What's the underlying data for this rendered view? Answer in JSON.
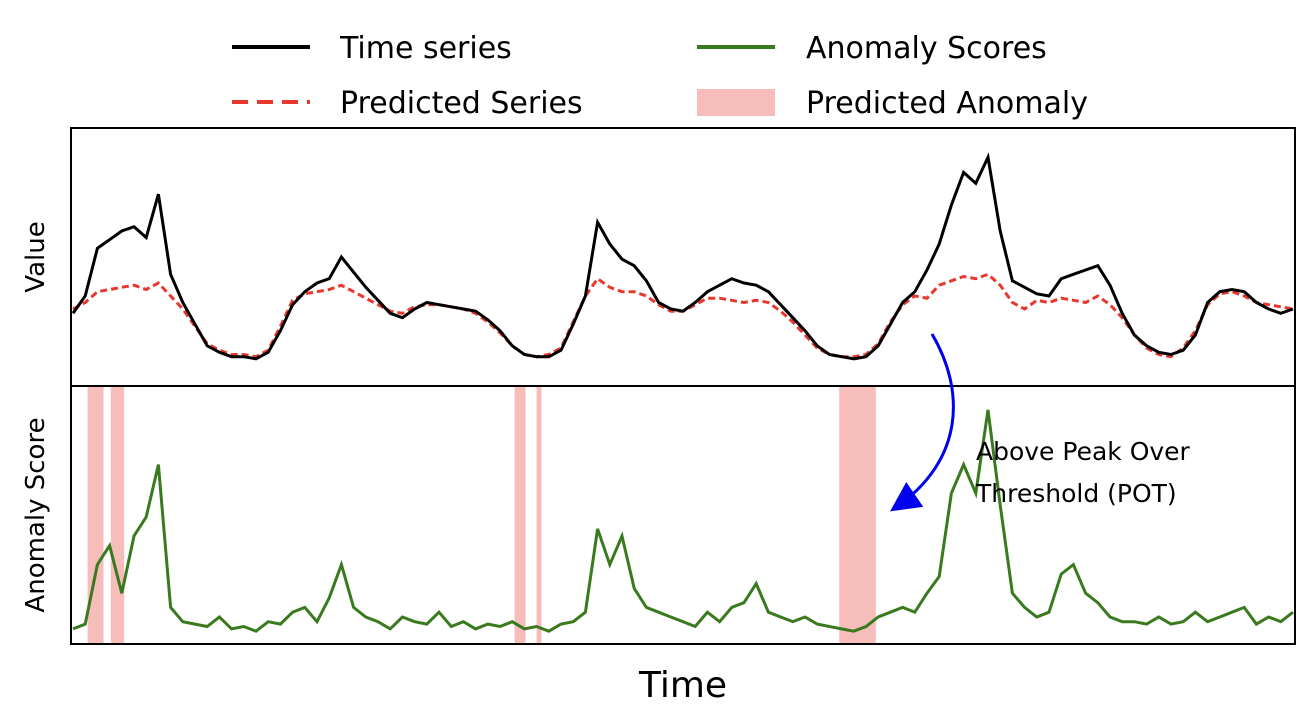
{
  "chart_data": {
    "type": "line",
    "xlabel": "Time",
    "legend": {
      "placement": "top",
      "entries": [
        {
          "label": "Time series",
          "style": "solid-line",
          "color": "#000000"
        },
        {
          "label": "Anomaly Scores",
          "style": "solid-line",
          "color": "#3a7a1e"
        },
        {
          "label": "Predicted Series",
          "style": "dashed-line",
          "color": "#e8382e"
        },
        {
          "label": "Predicted Anomaly",
          "style": "patch",
          "color": "#f6bdbb"
        }
      ]
    },
    "panels": [
      {
        "ylabel": "Value",
        "series": [
          {
            "name": "Time series",
            "color": "#000000",
            "x": [
              0,
              1,
              2,
              3,
              4,
              5,
              6,
              7,
              8,
              9,
              10,
              11,
              12,
              13,
              14,
              15,
              16,
              17,
              18,
              19,
              20,
              21,
              22,
              23,
              24,
              25,
              26,
              27,
              28,
              29,
              30,
              31,
              32,
              33,
              34,
              35,
              36,
              37,
              38,
              39,
              40,
              41,
              42,
              43,
              44,
              45,
              46,
              47,
              48,
              49,
              50,
              51,
              52,
              53,
              54,
              55,
              56,
              57,
              58,
              59,
              60,
              61,
              62,
              63,
              64,
              65,
              66,
              67,
              68,
              69,
              70,
              71,
              72,
              73,
              74,
              75,
              76,
              77,
              78,
              79,
              80,
              81,
              82,
              83,
              84,
              85,
              86,
              87,
              88,
              89,
              90,
              91,
              92,
              93,
              94,
              95,
              96,
              97,
              98,
              99,
              100
            ],
            "y": [
              0.2,
              0.28,
              0.5,
              0.54,
              0.58,
              0.6,
              0.55,
              0.75,
              0.38,
              0.25,
              0.15,
              0.05,
              0.02,
              0.0,
              0.0,
              -0.01,
              0.02,
              0.12,
              0.24,
              0.3,
              0.34,
              0.36,
              0.46,
              0.39,
              0.32,
              0.26,
              0.2,
              0.18,
              0.22,
              0.25,
              0.24,
              0.23,
              0.22,
              0.21,
              0.17,
              0.12,
              0.05,
              0.01,
              0.0,
              0.0,
              0.03,
              0.15,
              0.28,
              0.62,
              0.52,
              0.45,
              0.42,
              0.35,
              0.25,
              0.22,
              0.21,
              0.25,
              0.3,
              0.33,
              0.36,
              0.34,
              0.33,
              0.3,
              0.24,
              0.18,
              0.12,
              0.05,
              0.01,
              0.0,
              -0.01,
              0.0,
              0.05,
              0.15,
              0.25,
              0.3,
              0.4,
              0.52,
              0.7,
              0.85,
              0.8,
              0.92,
              0.58,
              0.35,
              0.32,
              0.29,
              0.28,
              0.36,
              0.38,
              0.4,
              0.42,
              0.33,
              0.2,
              0.1,
              0.05,
              0.02,
              0.01,
              0.03,
              0.1,
              0.25,
              0.3,
              0.31,
              0.3,
              0.25,
              0.22,
              0.2,
              0.22
            ]
          },
          {
            "name": "Predicted Series",
            "color": "#e8382e",
            "x": [
              0,
              1,
              2,
              3,
              4,
              5,
              6,
              7,
              8,
              9,
              10,
              11,
              12,
              13,
              14,
              15,
              16,
              17,
              18,
              19,
              20,
              21,
              22,
              23,
              24,
              25,
              26,
              27,
              28,
              29,
              30,
              31,
              32,
              33,
              34,
              35,
              36,
              37,
              38,
              39,
              40,
              41,
              42,
              43,
              44,
              45,
              46,
              47,
              48,
              49,
              50,
              51,
              52,
              53,
              54,
              55,
              56,
              57,
              58,
              59,
              60,
              61,
              62,
              63,
              64,
              65,
              66,
              67,
              68,
              69,
              70,
              71,
              72,
              73,
              74,
              75,
              76,
              77,
              78,
              79,
              80,
              81,
              82,
              83,
              84,
              85,
              86,
              87,
              88,
              89,
              90,
              91,
              92,
              93,
              94,
              95,
              96,
              97,
              98,
              99,
              100
            ],
            "y": [
              0.22,
              0.25,
              0.3,
              0.31,
              0.32,
              0.33,
              0.31,
              0.34,
              0.28,
              0.22,
              0.14,
              0.06,
              0.03,
              0.01,
              0.01,
              0.0,
              0.03,
              0.14,
              0.26,
              0.29,
              0.3,
              0.31,
              0.33,
              0.3,
              0.27,
              0.24,
              0.21,
              0.2,
              0.23,
              0.24,
              0.24,
              0.23,
              0.22,
              0.2,
              0.16,
              0.11,
              0.05,
              0.01,
              0.0,
              0.01,
              0.04,
              0.16,
              0.28,
              0.36,
              0.32,
              0.3,
              0.3,
              0.28,
              0.24,
              0.21,
              0.21,
              0.24,
              0.27,
              0.27,
              0.26,
              0.25,
              0.26,
              0.25,
              0.21,
              0.16,
              0.1,
              0.04,
              0.01,
              0.0,
              0.0,
              0.01,
              0.06,
              0.16,
              0.24,
              0.28,
              0.27,
              0.33,
              0.35,
              0.37,
              0.36,
              0.38,
              0.33,
              0.25,
              0.22,
              0.26,
              0.25,
              0.27,
              0.26,
              0.25,
              0.28,
              0.24,
              0.18,
              0.1,
              0.04,
              0.01,
              0.0,
              0.04,
              0.12,
              0.24,
              0.29,
              0.3,
              0.28,
              0.25,
              0.24,
              0.23,
              0.22
            ]
          }
        ]
      },
      {
        "ylabel": "Anomaly Score",
        "series": [
          {
            "name": "Anomaly Scores",
            "color": "#3a7a1e",
            "x": [
              0,
              1,
              2,
              3,
              4,
              5,
              6,
              7,
              8,
              9,
              10,
              11,
              12,
              13,
              14,
              15,
              16,
              17,
              18,
              19,
              20,
              21,
              22,
              23,
              24,
              25,
              26,
              27,
              28,
              29,
              30,
              31,
              32,
              33,
              34,
              35,
              36,
              37,
              38,
              39,
              40,
              41,
              42,
              43,
              44,
              45,
              46,
              47,
              48,
              49,
              50,
              51,
              52,
              53,
              54,
              55,
              56,
              57,
              58,
              59,
              60,
              61,
              62,
              63,
              64,
              65,
              66,
              67,
              68,
              69,
              70,
              71,
              72,
              73,
              74,
              75,
              76,
              77,
              78,
              79,
              80,
              81,
              82,
              83,
              84,
              85,
              86,
              87,
              88,
              89,
              90,
              91,
              92,
              93,
              94,
              95,
              96,
              97,
              98,
              99,
              100
            ],
            "y": [
              0.03,
              0.05,
              0.3,
              0.38,
              0.18,
              0.42,
              0.5,
              0.72,
              0.12,
              0.06,
              0.05,
              0.04,
              0.08,
              0.03,
              0.04,
              0.02,
              0.06,
              0.05,
              0.1,
              0.12,
              0.06,
              0.16,
              0.3,
              0.12,
              0.08,
              0.06,
              0.03,
              0.08,
              0.06,
              0.05,
              0.1,
              0.04,
              0.06,
              0.03,
              0.05,
              0.04,
              0.06,
              0.03,
              0.04,
              0.02,
              0.05,
              0.06,
              0.1,
              0.45,
              0.3,
              0.42,
              0.2,
              0.12,
              0.1,
              0.08,
              0.06,
              0.04,
              0.1,
              0.06,
              0.12,
              0.14,
              0.22,
              0.1,
              0.08,
              0.06,
              0.08,
              0.05,
              0.04,
              0.03,
              0.02,
              0.04,
              0.08,
              0.1,
              0.12,
              0.1,
              0.18,
              0.25,
              0.6,
              0.72,
              0.6,
              0.95,
              0.55,
              0.18,
              0.12,
              0.08,
              0.1,
              0.26,
              0.3,
              0.18,
              0.14,
              0.08,
              0.06,
              0.06,
              0.05,
              0.08,
              0.05,
              0.06,
              0.1,
              0.06,
              0.08,
              0.1,
              0.12,
              0.05,
              0.08,
              0.06,
              0.1
            ]
          }
        ],
        "anomaly_spans": [
          [
            1.2,
            2.5
          ],
          [
            3.1,
            4.2
          ],
          [
            36.2,
            37.1
          ],
          [
            38.0,
            38.4
          ],
          [
            62.8,
            65.8
          ]
        ]
      }
    ],
    "annotations": [
      {
        "text": "Above Peak Over",
        "anchor": "bottom-panel-right"
      },
      {
        "text": "Threshold (POT)",
        "anchor": "bottom-panel-right"
      }
    ]
  }
}
